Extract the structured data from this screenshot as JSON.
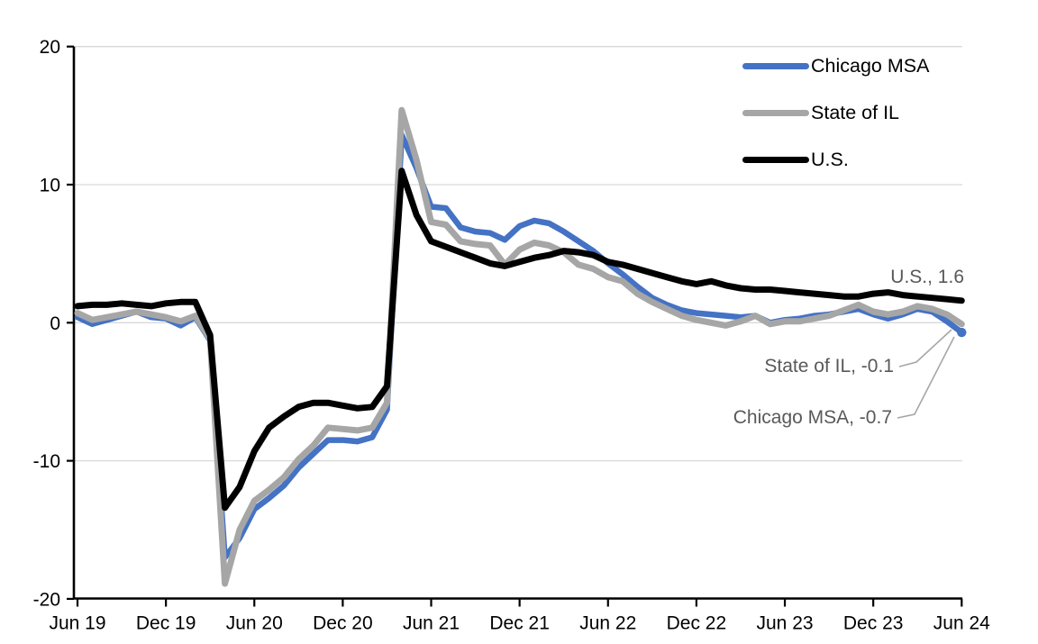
{
  "chart_data": {
    "type": "line",
    "title": "",
    "xlabel": "",
    "ylabel": "",
    "ylim": [
      -20,
      20
    ],
    "grid": "horizontal",
    "legend_position": "top-right",
    "y_ticks": [
      20,
      10,
      0,
      -10,
      -20
    ],
    "x_tick_labels": [
      "Jun 19",
      "Dec 19",
      "Jun 20",
      "Dec 20",
      "Jun 21",
      "Dec 21",
      "Jun 22",
      "Dec 22",
      "Jun 23",
      "Dec 23",
      "Jun 24"
    ],
    "x": [
      "Jun-19",
      "Jul-19",
      "Aug-19",
      "Sep-19",
      "Oct-19",
      "Nov-19",
      "Dec-19",
      "Jan-20",
      "Feb-20",
      "Mar-20",
      "Apr-20",
      "May-20",
      "Jun-20",
      "Jul-20",
      "Aug-20",
      "Sep-20",
      "Oct-20",
      "Nov-20",
      "Dec-20",
      "Jan-21",
      "Feb-21",
      "Mar-21",
      "Apr-21",
      "May-21",
      "Jun-21",
      "Jul-21",
      "Aug-21",
      "Sep-21",
      "Oct-21",
      "Nov-21",
      "Dec-21",
      "Jan-22",
      "Feb-22",
      "Mar-22",
      "Apr-22",
      "May-22",
      "Jun-22",
      "Jul-22",
      "Aug-22",
      "Sep-22",
      "Oct-22",
      "Nov-22",
      "Dec-22",
      "Jan-23",
      "Feb-23",
      "Mar-23",
      "Apr-23",
      "May-23",
      "Jun-23",
      "Jul-23",
      "Aug-23",
      "Sep-23",
      "Oct-23",
      "Nov-23",
      "Dec-23",
      "Jan-24",
      "Feb-24",
      "Mar-24",
      "Apr-24",
      "May-24",
      "Jun-24"
    ],
    "series": [
      {
        "name": "Chicago MSA",
        "color": "#4472C4",
        "width": 6.5,
        "final_value": -0.7,
        "values": [
          0.4,
          -0.1,
          0.2,
          0.5,
          0.8,
          0.4,
          0.3,
          -0.2,
          0.4,
          -1.3,
          -17.0,
          -15.6,
          -13.5,
          -12.7,
          -11.8,
          -10.5,
          -9.5,
          -8.5,
          -8.5,
          -8.6,
          -8.3,
          -6.3,
          13.6,
          11.2,
          8.4,
          8.3,
          6.9,
          6.6,
          6.5,
          6.0,
          7.0,
          7.4,
          7.2,
          6.6,
          5.9,
          5.2,
          4.3,
          3.5,
          2.6,
          1.8,
          1.3,
          0.9,
          0.7,
          0.6,
          0.5,
          0.4,
          0.5,
          0.0,
          0.2,
          0.3,
          0.5,
          0.6,
          0.8,
          1.0,
          0.6,
          0.3,
          0.6,
          1.0,
          0.8,
          0.1,
          -0.7
        ]
      },
      {
        "name": "State of IL",
        "color": "#A6A6A6",
        "width": 7,
        "final_value": -0.1,
        "values": [
          0.7,
          0.2,
          0.4,
          0.6,
          0.8,
          0.6,
          0.4,
          0.1,
          0.5,
          -1.2,
          -18.9,
          -15.0,
          -12.9,
          -12.1,
          -11.2,
          -9.9,
          -8.9,
          -7.6,
          -7.7,
          -7.8,
          -7.6,
          -5.8,
          15.4,
          11.8,
          7.3,
          7.1,
          5.9,
          5.7,
          5.6,
          4.2,
          5.3,
          5.8,
          5.6,
          5.1,
          4.2,
          3.9,
          3.3,
          3.0,
          2.1,
          1.5,
          1.0,
          0.5,
          0.2,
          0.0,
          -0.2,
          0.1,
          0.5,
          -0.1,
          0.1,
          0.1,
          0.3,
          0.5,
          0.9,
          1.3,
          0.8,
          0.6,
          0.8,
          1.2,
          1.0,
          0.6,
          -0.1
        ]
      },
      {
        "name": "U.S.",
        "color": "#000000",
        "width": 7,
        "final_value": 1.6,
        "values": [
          1.2,
          1.3,
          1.3,
          1.4,
          1.3,
          1.2,
          1.4,
          1.5,
          1.5,
          -0.9,
          -13.4,
          -11.9,
          -9.3,
          -7.6,
          -6.8,
          -6.1,
          -5.8,
          -5.8,
          -6.0,
          -6.2,
          -6.1,
          -4.6,
          11.0,
          7.8,
          5.9,
          5.5,
          5.1,
          4.7,
          4.3,
          4.1,
          4.4,
          4.7,
          4.9,
          5.2,
          5.1,
          4.9,
          4.4,
          4.2,
          3.9,
          3.6,
          3.3,
          3.0,
          2.8,
          3.0,
          2.7,
          2.5,
          2.4,
          2.4,
          2.3,
          2.2,
          2.1,
          2.0,
          1.9,
          1.9,
          2.1,
          2.2,
          2.0,
          1.9,
          1.8,
          1.7,
          1.6
        ]
      }
    ]
  },
  "legend": {
    "items": [
      {
        "label": "Chicago MSA",
        "color": "#4472C4"
      },
      {
        "label": "State of IL",
        "color": "#A6A6A6"
      },
      {
        "label": "U.S.",
        "color": "#000000"
      }
    ]
  },
  "annotations": {
    "us": "U.S., 1.6",
    "il": "State of IL, -0.1",
    "chicago": "Chicago MSA, -0.7"
  },
  "colors": {
    "chicago": "#4472C4",
    "state_il": "#A6A6A6",
    "us": "#000000",
    "gridline": "#D9D9D9",
    "axis": "#000000",
    "annotation_text": "#595959",
    "leader_line": "#A6A6A6",
    "background": "#FFFFFF"
  }
}
